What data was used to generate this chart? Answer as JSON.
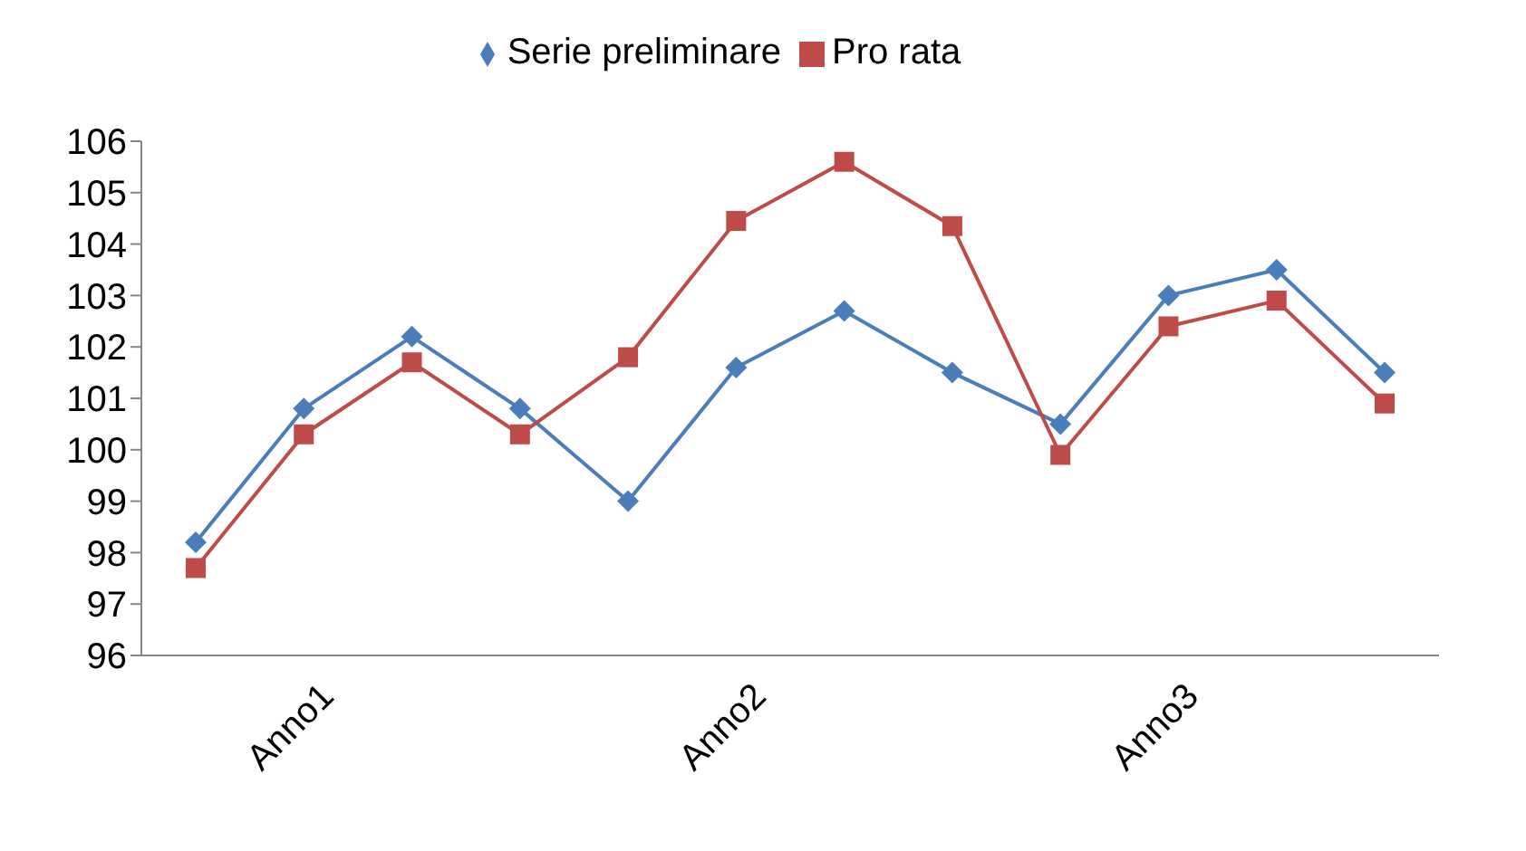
{
  "chart_data": {
    "type": "line",
    "categories": [
      null,
      "Anno1",
      null,
      null,
      null,
      "Anno2",
      null,
      null,
      null,
      "Anno3",
      null,
      null
    ],
    "series": [
      {
        "name": "Serie preliminare",
        "color": "#4a7ebb",
        "marker": "diamond",
        "values": [
          98.2,
          100.8,
          102.2,
          100.8,
          99.0,
          101.6,
          102.7,
          101.5,
          100.5,
          103.0,
          103.5,
          101.5
        ]
      },
      {
        "name": "Pro rata",
        "color": "#be4b48",
        "marker": "square",
        "values": [
          97.7,
          100.3,
          101.7,
          100.3,
          101.8,
          104.45,
          105.6,
          104.35,
          99.9,
          102.4,
          102.9,
          100.9
        ]
      }
    ],
    "ylim": [
      96,
      106
    ],
    "yticks": [
      96,
      97,
      98,
      99,
      100,
      101,
      102,
      103,
      104,
      105,
      106
    ],
    "legend": "top"
  }
}
